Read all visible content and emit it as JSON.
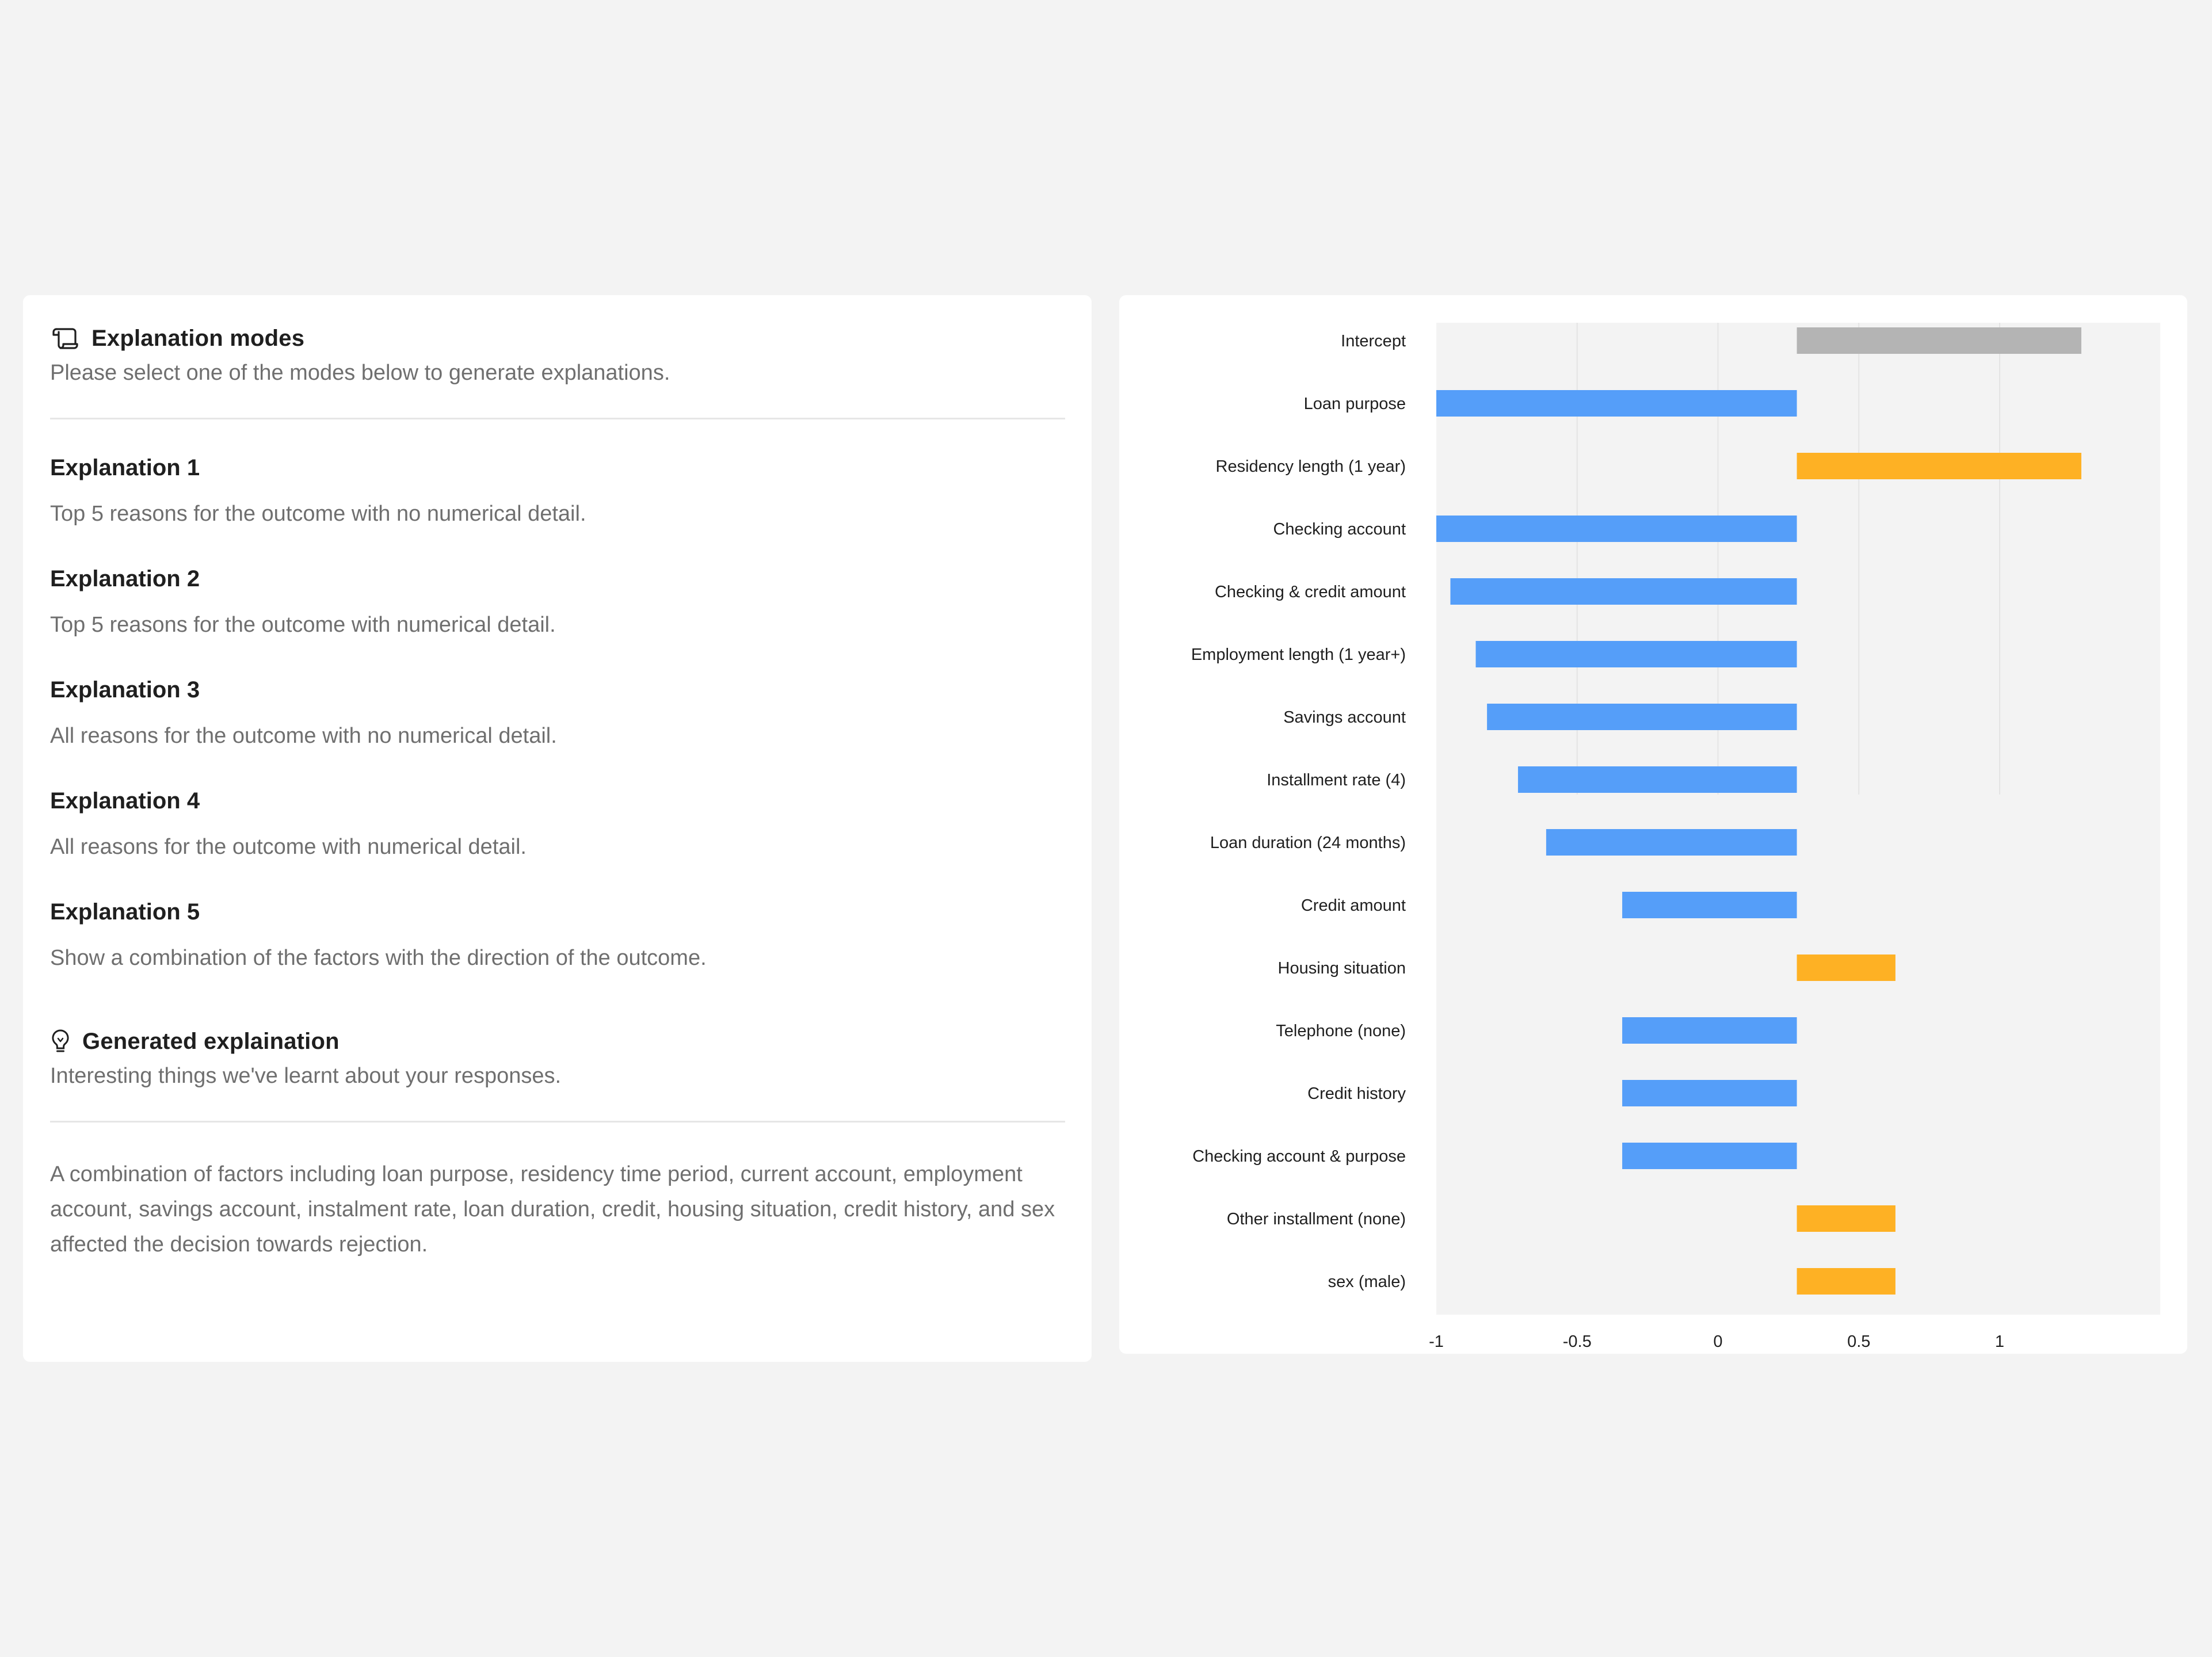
{
  "explanation_modes": {
    "title": "Explanation modes",
    "subtitle": "Please select one of the modes below to generate explanations.",
    "icon": "scroll-icon",
    "modes": [
      {
        "title": "Explanation 1",
        "description": "Top 5 reasons for the outcome with no numerical detail."
      },
      {
        "title": "Explanation 2",
        "description": "Top 5 reasons for the outcome with numerical detail."
      },
      {
        "title": "Explanation 3",
        "description": "All reasons for the outcome with no numerical detail."
      },
      {
        "title": "Explanation 4",
        "description": "All reasons for the outcome with numerical detail."
      },
      {
        "title": "Explanation 5",
        "description": "Show a combination of the factors with the direction of the outcome."
      }
    ]
  },
  "generated_explanation": {
    "title": "Generated explaination",
    "subtitle": "Interesting things we've learnt about your responses.",
    "icon": "lightbulb-icon",
    "text": "A combination of factors including loan purpose, residency time period, current account, employment account, savings account, instalment rate, loan duration, credit, housing situation, credit history, and sex affected the decision towards rejection."
  },
  "colors": {
    "negative": "#559ef9",
    "positive": "#feb124",
    "intercept": "#b4b4b4",
    "plot_background": "#f3f3f3"
  },
  "chart_data": {
    "type": "bar",
    "orientation": "horizontal",
    "title": "",
    "xlabel": "",
    "ylabel": "",
    "xlim": [
      -1.0,
      1.57
    ],
    "x_ticks": [
      -1,
      -0.5,
      0,
      0.5,
      1
    ],
    "x_tick_labels": [
      "-1",
      "-0.5",
      "0",
      "0.5",
      "1"
    ],
    "grid": true,
    "legend": "none",
    "baseline": 0.28,
    "categories": [
      "Intercept",
      "Loan purpose",
      "Residency length (1 year)",
      "Checking account",
      "Checking & credit amount",
      "Employment length (1 year+)",
      "Savings account",
      "Installment rate (4)",
      "Loan duration (24 months)",
      "Credit amount",
      "Housing situation",
      "Telephone (none)",
      "Credit history",
      "Checking account & purpose",
      "Other installment (none)",
      "sex (male)"
    ],
    "values": [
      1.29,
      -1.0,
      1.29,
      -1.0,
      -0.95,
      -0.86,
      -0.82,
      -0.71,
      -0.61,
      -0.34,
      0.63,
      -0.34,
      -0.34,
      -0.34,
      0.63,
      0.63
    ],
    "bar_colors": [
      "intercept",
      "negative",
      "positive",
      "negative",
      "negative",
      "negative",
      "negative",
      "negative",
      "negative",
      "negative",
      "positive",
      "negative",
      "negative",
      "negative",
      "positive",
      "positive"
    ]
  }
}
